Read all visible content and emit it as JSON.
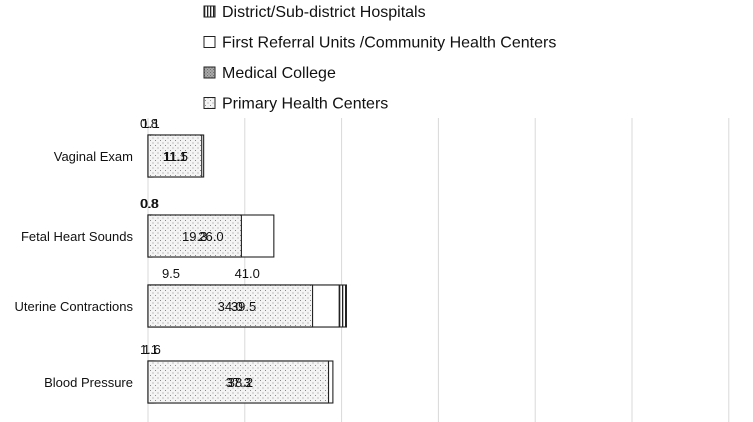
{
  "chart_data": {
    "type": "bar",
    "orientation": "horizontal",
    "stacked": true,
    "title": "",
    "xlabel": "",
    "ylabel": "",
    "xlim": [
      0,
      125
    ],
    "grid": true,
    "legend_position": "top",
    "categories": [
      "Vaginal Exam",
      "Fetal Heart Sounds",
      "Uterine Contractions",
      "Blood Pressure"
    ],
    "series": [
      {
        "name": "District/Sub-district Hospitals",
        "pattern": "vertical-lines",
        "values": [
          0.8,
          0.8,
          41.0,
          1.1
        ],
        "labels": [
          "0.8",
          "0.8",
          "41.0",
          "1.1"
        ],
        "label_position": "above"
      },
      {
        "name": "First Referral Units /Community Health Centers",
        "pattern": "white",
        "values": [
          11.5,
          26.0,
          39.5,
          38.2
        ],
        "labels": [
          "11.5",
          "26.0",
          "39.5",
          "38.2"
        ],
        "label_position": "inside"
      },
      {
        "name": "Medical College",
        "pattern": "gray-dots",
        "values": [
          1.1,
          0.8,
          9.5,
          1.6
        ],
        "labels": [
          "1.1",
          "0.8",
          "9.5",
          "1.6"
        ],
        "label_position": "above"
      },
      {
        "name": "Primary Health Centers",
        "pattern": "light-dots",
        "values": [
          11.1,
          19.3,
          34.0,
          37.3
        ],
        "labels": [
          "11.1",
          "19.3",
          "34.0",
          "37.3"
        ],
        "label_position": "inside"
      }
    ]
  }
}
